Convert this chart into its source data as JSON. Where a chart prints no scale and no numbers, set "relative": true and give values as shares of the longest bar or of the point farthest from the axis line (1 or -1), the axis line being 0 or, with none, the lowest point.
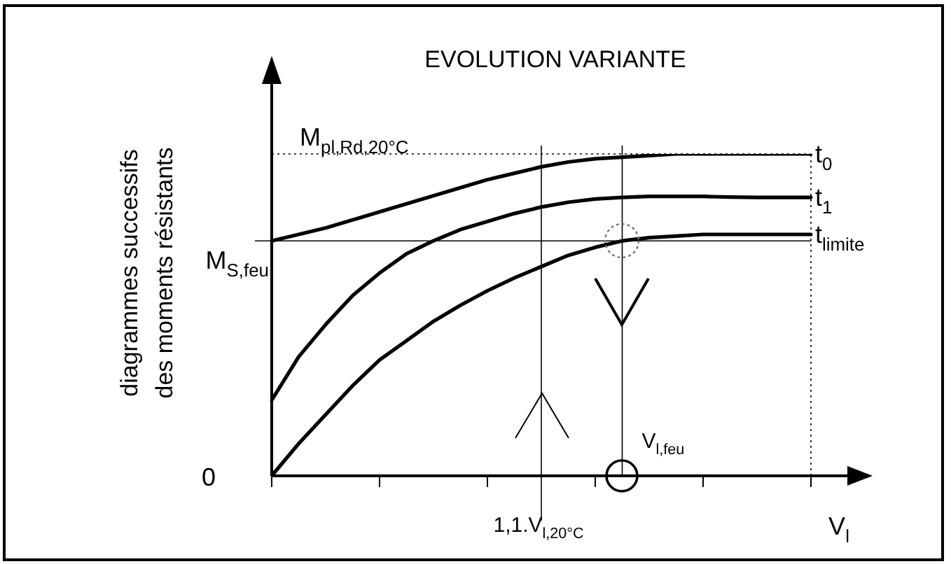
{
  "chart_data": {
    "type": "line",
    "title": "EVOLUTION VARIANTE",
    "xlabel": "V$_{l}$",
    "ylabel": "diagrammes successifs\ndes moments résistants",
    "relative": true,
    "marker": "none",
    "categories": [
      null,
      null,
      null,
      null,
      null,
      null,
      null,
      null,
      null,
      null,
      null,
      null,
      null,
      null,
      null,
      null,
      null,
      null,
      null,
      null,
      null
    ],
    "series": [
      {
        "name": "t$_{0}$",
        "color": "#000000",
        "values": [
          0.73,
          0.75,
          0.77,
          0.795,
          0.82,
          0.845,
          0.87,
          0.895,
          0.92,
          0.94,
          0.96,
          0.975,
          0.985,
          0.99,
          0.995,
          1,
          1,
          1,
          1,
          1,
          1
        ]
      },
      {
        "name": "t$_{1}$",
        "color": "#000000",
        "values": [
          0.235,
          0.37,
          0.47,
          0.56,
          0.63,
          0.69,
          0.73,
          0.765,
          0.79,
          0.815,
          0.835,
          0.85,
          0.86,
          0.865,
          0.868,
          0.868,
          0.868,
          0.866,
          0.865,
          0.865,
          0.865
        ]
      },
      {
        "name": "t$_{limite}$",
        "color": "#000000",
        "values": [
          0,
          0.1,
          0.19,
          0.28,
          0.36,
          0.42,
          0.48,
          0.53,
          0.575,
          0.615,
          0.65,
          0.685,
          0.71,
          0.73,
          0.74,
          0.745,
          0.75,
          0.75,
          0.75,
          0.75,
          0.75
        ]
      }
    ],
    "ref_lines": [
      {
        "axis": "y",
        "value": 1,
        "label": "M$_{pl,Rd,20°C}$",
        "color": "#000000",
        "line_style": "dotted"
      },
      {
        "axis": "y",
        "value": 0.73,
        "label": "M$_{S,feu}$",
        "color": "#000000"
      }
    ],
    "annotations": [
      "0",
      "1,1.V$_{l,20°C}$",
      "V$_{l,feu}$"
    ]
  }
}
